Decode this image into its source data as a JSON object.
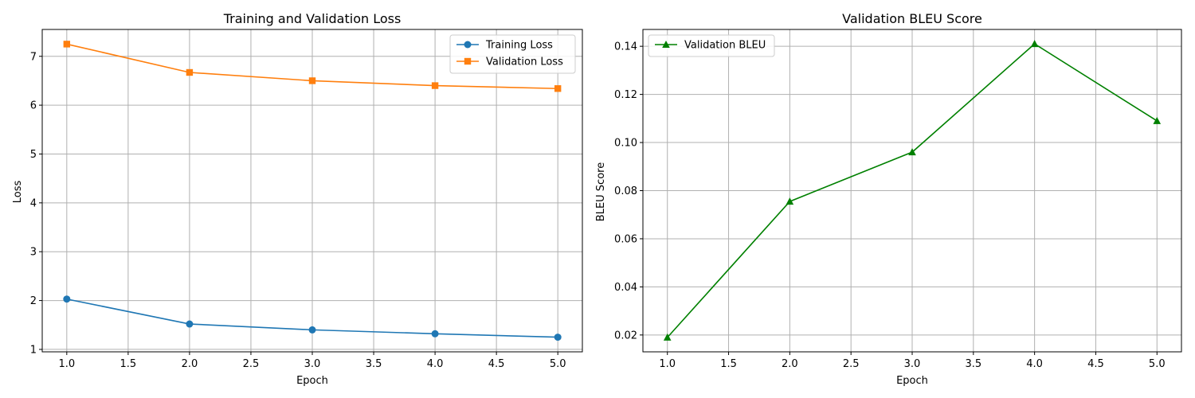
{
  "chart_data": [
    {
      "type": "line",
      "title": "Training and Validation Loss",
      "xlabel": "Epoch",
      "ylabel": "Loss",
      "x": [
        1,
        2,
        3,
        4,
        5
      ],
      "xlim": [
        0.8,
        5.2
      ],
      "ylim": [
        0.95,
        7.55
      ],
      "xticks": [
        "1.0",
        "1.5",
        "2.0",
        "2.5",
        "3.0",
        "3.5",
        "4.0",
        "4.5",
        "5.0"
      ],
      "yticks": [
        "1",
        "2",
        "3",
        "4",
        "5",
        "6",
        "7"
      ],
      "grid": true,
      "legend_position": "top-right",
      "series": [
        {
          "name": "Training Loss",
          "values": [
            2.03,
            1.52,
            1.4,
            1.32,
            1.25
          ],
          "color": "#1f77b4",
          "marker": "circle"
        },
        {
          "name": "Validation Loss",
          "values": [
            7.25,
            6.67,
            6.5,
            6.4,
            6.34
          ],
          "color": "#ff7f0e",
          "marker": "square"
        }
      ]
    },
    {
      "type": "line",
      "title": "Validation BLEU Score",
      "xlabel": "Epoch",
      "ylabel": "BLEU Score",
      "x": [
        1,
        2,
        3,
        4,
        5
      ],
      "xlim": [
        0.8,
        5.2
      ],
      "ylim": [
        0.013,
        0.147
      ],
      "xticks": [
        "1.0",
        "1.5",
        "2.0",
        "2.5",
        "3.0",
        "3.5",
        "4.0",
        "4.5",
        "5.0"
      ],
      "yticks": [
        "0.02",
        "0.04",
        "0.06",
        "0.08",
        "0.10",
        "0.12",
        "0.14"
      ],
      "grid": true,
      "legend_position": "top-left",
      "series": [
        {
          "name": "Validation BLEU",
          "values": [
            0.019,
            0.0755,
            0.096,
            0.141,
            0.109
          ],
          "color": "#008000",
          "marker": "triangle"
        }
      ]
    }
  ]
}
